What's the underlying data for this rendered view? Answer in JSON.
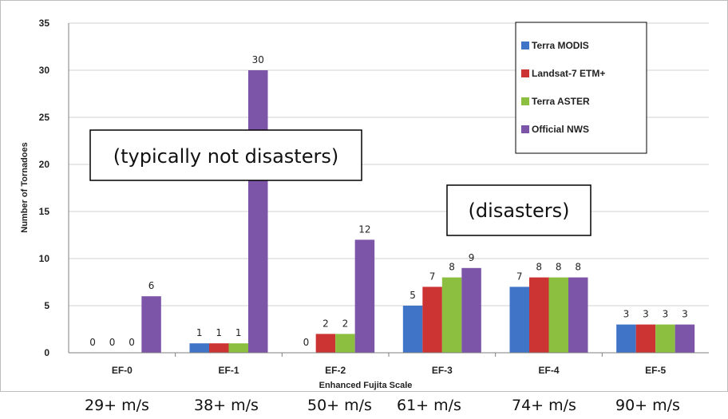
{
  "chart_data": {
    "type": "bar",
    "categories": [
      "EF-0",
      "EF-1",
      "EF-2",
      "EF-3",
      "EF-4",
      "EF-5"
    ],
    "series": [
      {
        "name": "Terra MODIS",
        "values": [
          0,
          1,
          0,
          5,
          7,
          3
        ],
        "color": "#3f74c6"
      },
      {
        "name": "Landsat-7 ETM+",
        "values": [
          0,
          1,
          2,
          7,
          8,
          3
        ],
        "color": "#cc3333"
      },
      {
        "name": "Terra ASTER",
        "values": [
          0,
          1,
          2,
          8,
          8,
          3
        ],
        "color": "#8cbf3f"
      },
      {
        "name": "Official NWS",
        "values": [
          6,
          30,
          12,
          9,
          8,
          3
        ],
        "color": "#7d55a8"
      }
    ],
    "data_labels": [
      [
        "0",
        "0",
        "0",
        "6"
      ],
      [
        "1",
        "1",
        "1",
        "30"
      ],
      [
        "0",
        "2",
        "2",
        "12"
      ],
      [
        "5",
        "7",
        "8",
        "9"
      ],
      [
        "7",
        "8",
        "8",
        "8"
      ],
      [
        "3",
        "3",
        "3",
        "3"
      ]
    ],
    "yticks": [
      "0",
      "5",
      "10",
      "15",
      "20",
      "25",
      "30",
      "35"
    ],
    "ylim": [
      0,
      35
    ],
    "xlabel": "Enhanced Fujita Scale",
    "ylabel": "Number of Tornadoes",
    "grid": true,
    "legend": "top-right",
    "annotations": [
      "(typically not disasters)",
      "(disasters)"
    ],
    "speed_labels": [
      "29+ m/s",
      "38+ m/s",
      "50+ m/s",
      "61+ m/s",
      "74+ m/s",
      "90+ m/s"
    ]
  }
}
